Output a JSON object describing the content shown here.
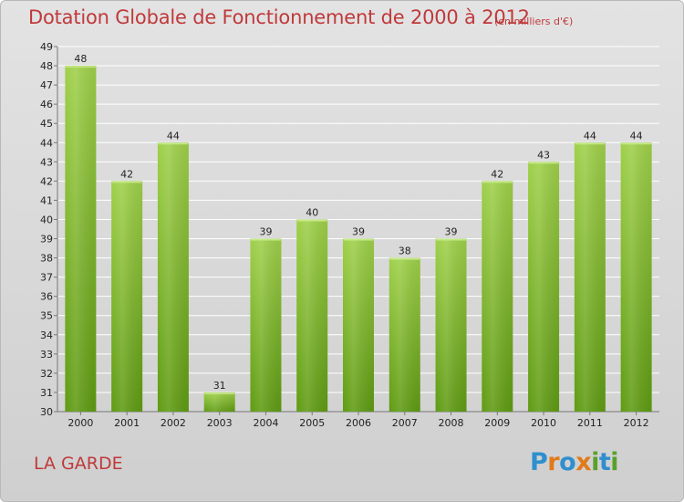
{
  "title": "Dotation Globale de Fonctionnement de 2000 à 2012",
  "subtitle": "(en milliers d'€)",
  "commune": "LA GARDE",
  "brand": {
    "text": "Proxiti",
    "letters": [
      "P",
      "r",
      "o",
      "x",
      "i",
      "t",
      "i"
    ],
    "colors": [
      "#2f8fce",
      "#e07a1a",
      "#2f8fce",
      "#e07a1a",
      "#5aa02c",
      "#2f8fce",
      "#5aa02c"
    ]
  },
  "colors": {
    "title": "#c0393b",
    "bar_light": "#9fd04a",
    "bar_dark": "#5f9b13",
    "grid": "#ffffff"
  },
  "chart_data": {
    "type": "bar",
    "categories": [
      "2000",
      "2001",
      "2002",
      "2003",
      "2004",
      "2005",
      "2006",
      "2007",
      "2008",
      "2009",
      "2010",
      "2011",
      "2012"
    ],
    "values": [
      48,
      42,
      44,
      31,
      39,
      40,
      39,
      38,
      39,
      42,
      43,
      44,
      44
    ],
    "data_labels": [
      "48",
      "42",
      "44",
      "31",
      "39",
      "40",
      "39",
      "38",
      "39",
      "42",
      "43",
      "44",
      "44"
    ],
    "y_ticks": [
      30,
      31,
      32,
      33,
      34,
      35,
      36,
      37,
      38,
      39,
      40,
      41,
      42,
      43,
      44,
      45,
      46,
      47,
      48,
      49
    ],
    "ylim": [
      30,
      49
    ],
    "grid": true,
    "legend": "none"
  }
}
